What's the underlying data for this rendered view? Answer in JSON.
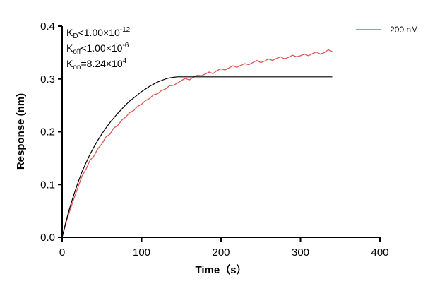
{
  "chart_data": {
    "type": "line",
    "title": "",
    "xlabel": "Time（s）",
    "ylabel": "Response (nm)",
    "xlim": [
      0,
      400
    ],
    "ylim": [
      0,
      0.4
    ],
    "xticks": [
      0,
      100,
      200,
      300,
      400
    ],
    "yticks": [
      0.0,
      0.1,
      0.2,
      0.3,
      0.4
    ],
    "xtick_labels": [
      "0",
      "100",
      "200",
      "300",
      "400"
    ],
    "ytick_labels": [
      "0.0",
      "0.1",
      "0.2",
      "0.3",
      "0.4"
    ],
    "grid": false,
    "legend_position": "top-right",
    "annotations": [
      {
        "key": "kd",
        "prefix": "K",
        "sub": "D",
        "relation": "<",
        "base": "1.00×10",
        "sup": "-12"
      },
      {
        "key": "koff",
        "prefix": "K",
        "sub": "off",
        "relation": "<",
        "base": "1.00×10",
        "sup": "-6"
      },
      {
        "key": "kon",
        "prefix": "K",
        "sub": "on",
        "relation": "=",
        "base": "8.24×10",
        "sup": "4"
      }
    ],
    "series": [
      {
        "name": "200 nM",
        "color": "#e05555",
        "x": [
          0,
          5,
          10,
          15,
          20,
          25,
          30,
          35,
          40,
          45,
          50,
          55,
          60,
          65,
          70,
          75,
          80,
          85,
          90,
          95,
          100,
          105,
          110,
          115,
          120,
          125,
          130,
          135,
          140,
          145,
          150,
          155,
          160,
          165,
          170,
          175,
          180,
          185,
          190,
          195,
          200,
          205,
          210,
          215,
          220,
          225,
          230,
          235,
          240,
          245,
          250,
          255,
          260,
          265,
          270,
          275,
          280,
          285,
          290,
          295,
          300,
          305,
          310,
          315,
          320,
          325,
          330,
          335,
          340
        ],
        "y": [
          0.0,
          0.028,
          0.052,
          0.074,
          0.095,
          0.116,
          0.129,
          0.146,
          0.154,
          0.168,
          0.177,
          0.19,
          0.195,
          0.207,
          0.212,
          0.222,
          0.228,
          0.236,
          0.24,
          0.248,
          0.252,
          0.259,
          0.263,
          0.27,
          0.272,
          0.278,
          0.281,
          0.287,
          0.288,
          0.292,
          0.297,
          0.301,
          0.298,
          0.303,
          0.307,
          0.306,
          0.309,
          0.313,
          0.31,
          0.316,
          0.319,
          0.317,
          0.321,
          0.325,
          0.322,
          0.326,
          0.329,
          0.327,
          0.331,
          0.335,
          0.331,
          0.334,
          0.338,
          0.335,
          0.339,
          0.342,
          0.338,
          0.341,
          0.345,
          0.342,
          0.344,
          0.347,
          0.344,
          0.348,
          0.351,
          0.347,
          0.35,
          0.355,
          0.352
        ]
      },
      {
        "name": "",
        "color": "#000000",
        "x": [
          0,
          5,
          10,
          15,
          20,
          25,
          30,
          35,
          40,
          45,
          50,
          55,
          60,
          65,
          70,
          75,
          80,
          85,
          90,
          95,
          100,
          105,
          110,
          115,
          120,
          125,
          130,
          135,
          140,
          145,
          150,
          160,
          180,
          200,
          250,
          300,
          340
        ],
        "y": [
          0.0,
          0.031,
          0.058,
          0.082,
          0.104,
          0.124,
          0.141,
          0.157,
          0.171,
          0.184,
          0.196,
          0.207,
          0.217,
          0.226,
          0.235,
          0.243,
          0.251,
          0.258,
          0.264,
          0.27,
          0.276,
          0.281,
          0.286,
          0.29,
          0.294,
          0.297,
          0.3,
          0.302,
          0.303,
          0.304,
          0.304,
          0.304,
          0.304,
          0.304,
          0.304,
          0.304,
          0.304
        ]
      }
    ]
  }
}
